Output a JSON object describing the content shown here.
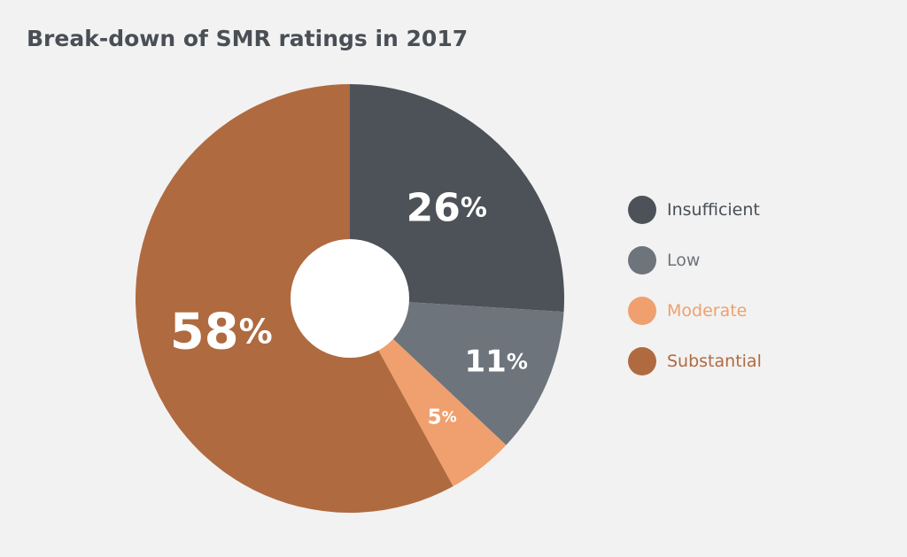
{
  "chart_data": {
    "type": "pie",
    "donut": true,
    "title": "Break-down of SMR ratings in 2017",
    "start_angle_deg": 0,
    "direction": "clockwise",
    "slices": [
      {
        "label": "Insufficient",
        "value": 26,
        "display": "26",
        "color": "#4d5259",
        "legend_text_color": "#4a4f56"
      },
      {
        "label": "Low",
        "value": 11,
        "display": "11",
        "color": "#6e747c",
        "legend_text_color": "#6e747c"
      },
      {
        "label": "Moderate",
        "value": 5,
        "display": "5",
        "color": "#efa06e",
        "legend_text_color": "#efa06e"
      },
      {
        "label": "Substantial",
        "value": 58,
        "display": "58",
        "color": "#b06a40",
        "legend_text_color": "#b06a40"
      }
    ],
    "percent_symbol": "%",
    "legend_position": "right"
  }
}
